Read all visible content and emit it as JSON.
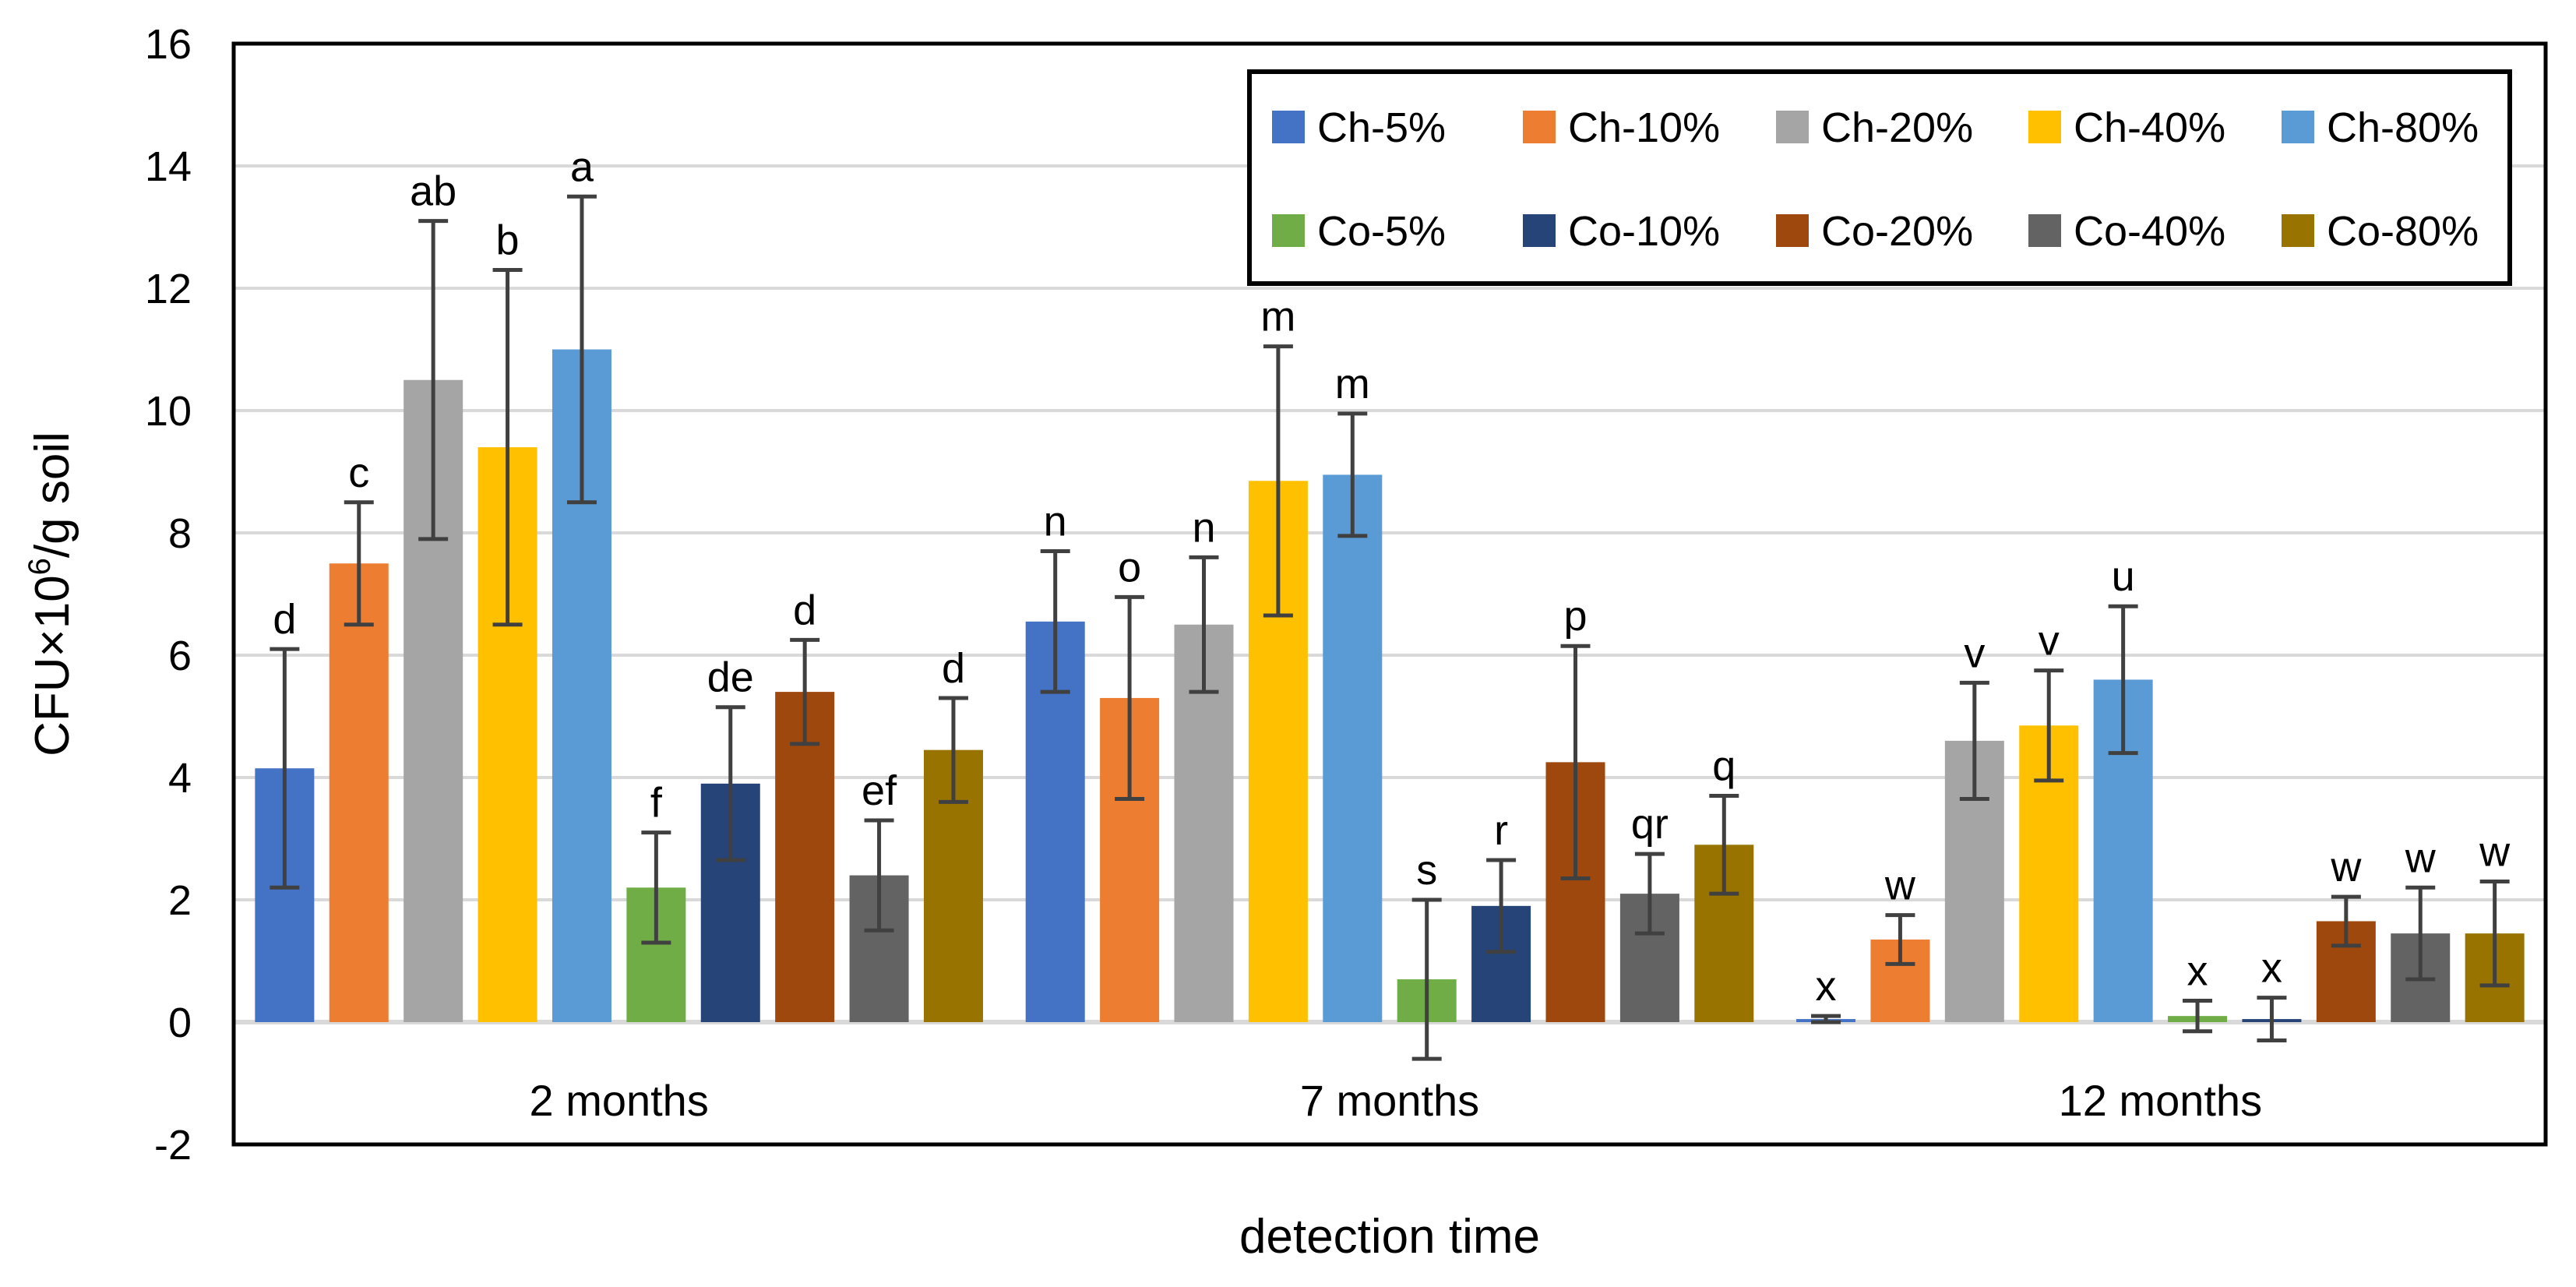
{
  "chart_data": {
    "type": "bar",
    "title": "",
    "xlabel": "detection time",
    "ylabel": "CFU×10⁶/g soil",
    "ylabel_parts": {
      "main": "CFU×10",
      "superscript": "6",
      "suffix": "/g soil"
    },
    "ylim": [
      -2,
      16
    ],
    "yticks": [
      "-2",
      "0",
      "2",
      "4",
      "6",
      "8",
      "10",
      "12",
      "14",
      "16"
    ],
    "ytick_values": [
      -2,
      0,
      2,
      4,
      6,
      8,
      10,
      12,
      14,
      16
    ],
    "grid": true,
    "legend_position": "top-right",
    "categories": [
      "2 months",
      "7 months",
      "12 months"
    ],
    "series": [
      {
        "name": "Ch-5%",
        "color": "#4472C4",
        "values": [
          4.15,
          6.55,
          0.05
        ],
        "errors": [
          1.95,
          1.15,
          0.05
        ],
        "letters": [
          "d",
          "n",
          "x"
        ]
      },
      {
        "name": "Ch-10%",
        "color": "#ED7D31",
        "values": [
          7.5,
          5.3,
          1.35
        ],
        "errors": [
          1.0,
          1.65,
          0.4
        ],
        "letters": [
          "c",
          "o",
          "w"
        ]
      },
      {
        "name": "Ch-20%",
        "color": "#A5A5A5",
        "values": [
          10.5,
          6.5,
          4.6
        ],
        "errors": [
          2.6,
          1.1,
          0.95
        ],
        "letters": [
          "ab",
          "n",
          "v"
        ]
      },
      {
        "name": "Ch-40%",
        "color": "#FFC000",
        "values": [
          9.4,
          8.85,
          4.85
        ],
        "errors": [
          2.9,
          2.2,
          0.9
        ],
        "letters": [
          "b",
          "m",
          "v"
        ]
      },
      {
        "name": "Ch-80%",
        "color": "#5B9BD5",
        "values": [
          11.0,
          8.95,
          5.6
        ],
        "errors": [
          2.5,
          1.0,
          1.2
        ],
        "letters": [
          "a",
          "m",
          "u"
        ]
      },
      {
        "name": "Co-5%",
        "color": "#70AD47",
        "values": [
          2.2,
          0.7,
          0.1
        ],
        "errors": [
          0.9,
          1.3,
          0.25
        ],
        "letters": [
          "f",
          "s",
          "x"
        ]
      },
      {
        "name": "Co-10%",
        "color": "#264478",
        "values": [
          3.9,
          1.9,
          0.05
        ],
        "errors": [
          1.25,
          0.75,
          0.35
        ],
        "letters": [
          "de",
          "r",
          "x"
        ]
      },
      {
        "name": "Co-20%",
        "color": "#9E480E",
        "values": [
          5.4,
          4.25,
          1.65
        ],
        "errors": [
          0.85,
          1.9,
          0.4
        ],
        "letters": [
          "d",
          "p",
          "w"
        ]
      },
      {
        "name": "Co-40%",
        "color": "#636363",
        "values": [
          2.4,
          2.1,
          1.45
        ],
        "errors": [
          0.9,
          0.65,
          0.75
        ],
        "letters": [
          "ef",
          "qr",
          "w"
        ]
      },
      {
        "name": "Co-80%",
        "color": "#997300",
        "values": [
          4.45,
          2.9,
          1.45
        ],
        "errors": [
          0.85,
          0.8,
          0.85
        ],
        "letters": [
          "d",
          "q",
          "w"
        ]
      }
    ],
    "colors": {
      "errorbar": "#404040",
      "grid": "#D9D9D9",
      "border": "#000000"
    }
  }
}
